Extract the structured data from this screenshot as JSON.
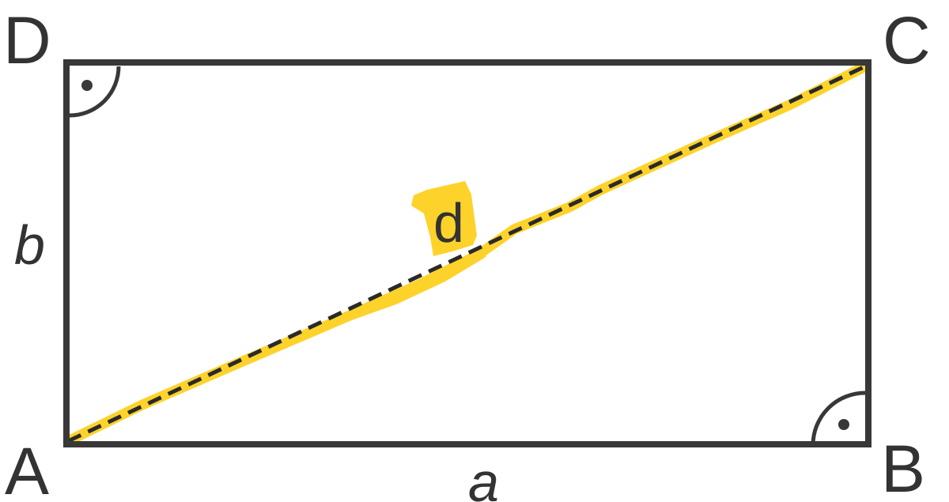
{
  "diagram": {
    "vertices": {
      "a": "A",
      "b": "B",
      "c": "C",
      "d": "D"
    },
    "sides": {
      "bottom": "a",
      "left": "b"
    },
    "diagonal": {
      "label": "d"
    },
    "colors": {
      "stroke": "#383838",
      "highlight": "#fdd32b",
      "text": "#333333"
    }
  }
}
